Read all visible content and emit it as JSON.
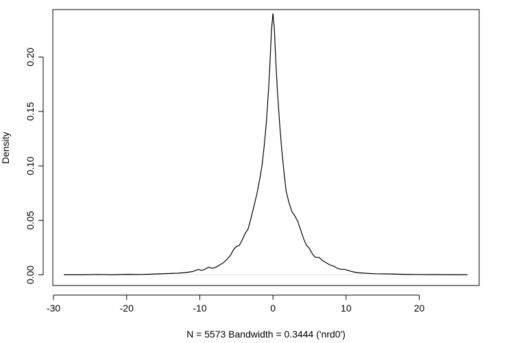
{
  "chart_data": {
    "type": "line",
    "title": "",
    "xlabel": "N = 5573   Bandwidth = 0.3444 ('nrd0')",
    "ylabel": "Density",
    "xlim": [
      -30.1,
      28.2
    ],
    "ylim": [
      -0.0098,
      0.2435
    ],
    "x_ticks": [
      -30,
      -20,
      -10,
      0,
      10,
      20
    ],
    "x_tick_labels": [
      "-30",
      "-20",
      "-10",
      "0",
      "10",
      "20"
    ],
    "y_ticks": [
      0.0,
      0.05,
      0.1,
      0.15,
      0.2
    ],
    "y_tick_labels": [
      "0.00",
      "0.05",
      "0.10",
      "0.15",
      "0.20"
    ],
    "grid": false,
    "legend": "none",
    "colors": {
      "line": "#000000",
      "baseline": "#e6e6e6",
      "frame": "#000000"
    },
    "series": [
      {
        "x": [
          -28.6,
          -26,
          -24,
          -22,
          -20,
          -18,
          -16,
          -14,
          -13,
          -12,
          -11,
          -10.2,
          -9.8,
          -9.3,
          -8.8,
          -8.3,
          -7.8,
          -7.3,
          -6.8,
          -6.3,
          -5.8,
          -5.4,
          -5.0,
          -4.6,
          -4.2,
          -3.8,
          -3.4,
          -3.0,
          -2.6,
          -2.2,
          -1.8,
          -1.5,
          -1.2,
          -0.9,
          -0.6,
          -0.4,
          -0.2,
          0.0,
          0.2,
          0.4,
          0.6,
          0.9,
          1.2,
          1.5,
          1.8,
          2.2,
          2.6,
          3.0,
          3.4,
          3.8,
          4.2,
          4.6,
          5.0,
          5.4,
          5.8,
          6.3,
          6.8,
          7.3,
          7.8,
          8.3,
          8.8,
          9.3,
          9.8,
          10.3,
          10.8,
          11.5,
          12.5,
          14,
          16,
          18,
          20,
          22,
          24,
          26.6
        ],
        "y": [
          0.0,
          0.0,
          0.0003,
          0.0,
          0.0004,
          0.0003,
          0.0008,
          0.0013,
          0.0015,
          0.002,
          0.003,
          0.005,
          0.004,
          0.005,
          0.007,
          0.006,
          0.007,
          0.009,
          0.011,
          0.014,
          0.018,
          0.023,
          0.026,
          0.027,
          0.032,
          0.038,
          0.042,
          0.052,
          0.063,
          0.074,
          0.088,
          0.1,
          0.118,
          0.14,
          0.17,
          0.195,
          0.225,
          0.24,
          0.225,
          0.195,
          0.17,
          0.14,
          0.115,
          0.095,
          0.077,
          0.066,
          0.058,
          0.054,
          0.049,
          0.041,
          0.033,
          0.027,
          0.024,
          0.019,
          0.016,
          0.016,
          0.013,
          0.011,
          0.009,
          0.008,
          0.006,
          0.005,
          0.005,
          0.004,
          0.003,
          0.002,
          0.0015,
          0.001,
          0.0008,
          0.0004,
          0.0003,
          0.0002,
          0.0001,
          0.0
        ]
      }
    ]
  }
}
